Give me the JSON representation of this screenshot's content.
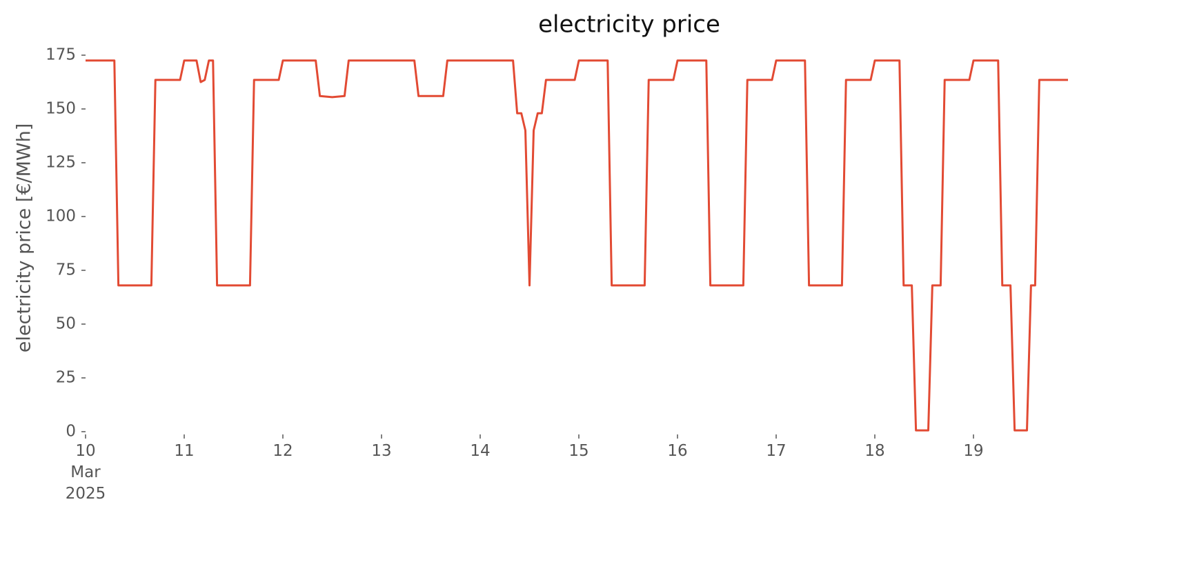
{
  "chart_data": {
    "type": "line",
    "title": "electricity price",
    "y_label": "electricity price [€/MWh]",
    "x": [
      10,
      10.292,
      10.333,
      10.667,
      10.708,
      10.958,
      11.0,
      11.125,
      11.167,
      11.208,
      11.25,
      11.292,
      11.333,
      11.667,
      11.708,
      11.958,
      12.0,
      12.333,
      12.375,
      12.5,
      12.625,
      12.667,
      13.333,
      13.375,
      13.625,
      13.667,
      14.333,
      14.375,
      14.417,
      14.458,
      14.5,
      14.542,
      14.583,
      14.625,
      14.667,
      14.958,
      15.0,
      15.292,
      15.333,
      15.667,
      15.708,
      15.958,
      16.0,
      16.292,
      16.333,
      16.667,
      16.708,
      16.958,
      17.0,
      17.292,
      17.333,
      17.667,
      17.708,
      17.958,
      18.0,
      18.25,
      18.292,
      18.375,
      18.417,
      18.542,
      18.583,
      18.667,
      18.708,
      18.958,
      19.0,
      19.25,
      19.292,
      19.375,
      19.417,
      19.542,
      19.583,
      19.625,
      19.667,
      19.958
    ],
    "series": [
      {
        "name": "electricity price",
        "color": "#e24a33",
        "values": [
          172.5,
          172.5,
          68,
          68,
          163.5,
          163.5,
          172.5,
          172.5,
          162.5,
          163.5,
          172.5,
          172.5,
          68,
          68,
          163.5,
          163.5,
          172.5,
          172.5,
          156,
          155.5,
          156,
          172.5,
          172.5,
          156,
          156,
          172.5,
          172.5,
          148,
          148,
          140,
          68,
          140,
          148,
          148,
          163.5,
          163.5,
          172.5,
          172.5,
          68,
          68,
          163.5,
          163.5,
          172.5,
          172.5,
          68,
          68,
          163.5,
          163.5,
          172.5,
          172.5,
          68,
          68,
          163.5,
          163.5,
          172.5,
          172.5,
          68,
          68,
          0.6,
          0.6,
          68,
          68,
          163.5,
          163.5,
          172.5,
          172.5,
          68,
          68,
          0.6,
          0.6,
          68,
          68,
          163.5,
          163.5
        ]
      }
    ],
    "xlim": [
      10,
      19.958
    ],
    "xticks": [
      {
        "value": 10,
        "label": "10\nMar\n2025"
      },
      11,
      12,
      13,
      14,
      15,
      16,
      17,
      18,
      19
    ],
    "ylim": [
      0,
      175
    ],
    "yticks": [
      0,
      25,
      50,
      75,
      100,
      125,
      150,
      175
    ],
    "grid": false
  }
}
